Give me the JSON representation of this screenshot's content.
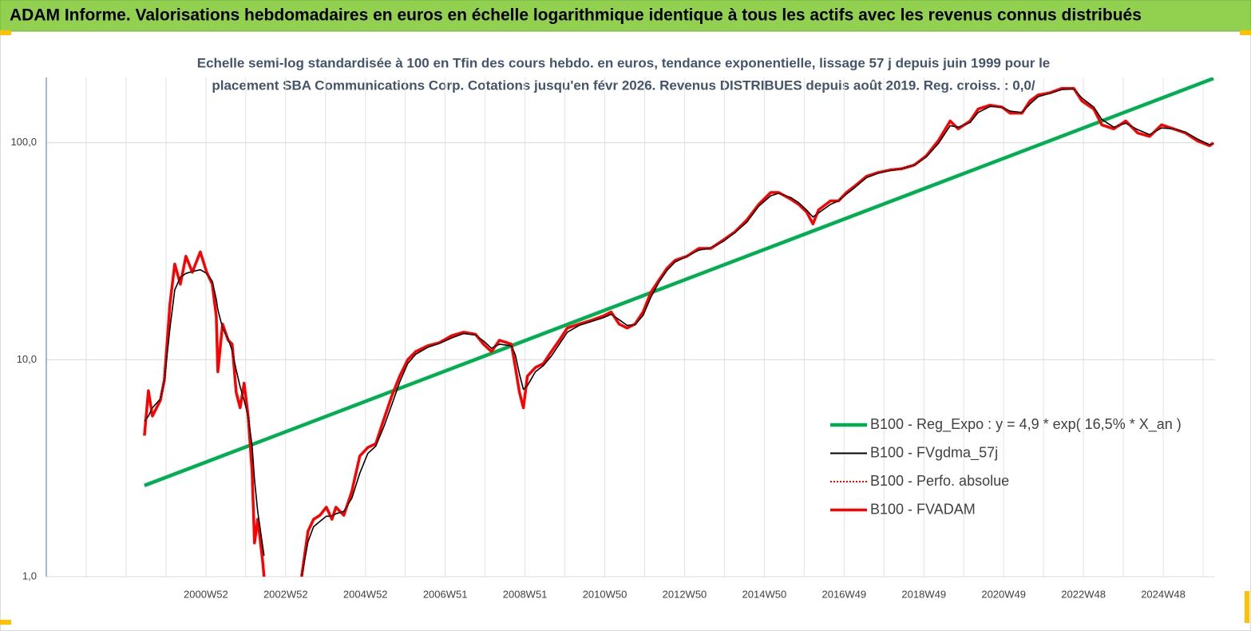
{
  "chart_data": {
    "type": "line",
    "title": "ADAM Informe. Valorisations hebdomadaires en euros en échelle logarithmique identique à tous les actifs avec les revenus connus distribués",
    "subtitle": [
      "Echelle semi-log standardisée à 100 en Tfin des cours hebdo. en euros, tendance exponentielle, lissage 57 j depuis juin 1999 pour le",
      "placement SBA Communications Corp. Cotations jusqu'en févr 2026. Revenus DISTRIBUES depuis août 2019. Reg. croiss. :  0,0/"
    ],
    "yscale": "log",
    "ylim": [
      1,
      200
    ],
    "yticks": [
      {
        "value": 1,
        "label": "1,0"
      },
      {
        "value": 10,
        "label": "10,0"
      },
      {
        "value": 100,
        "label": "100,0"
      }
    ],
    "xlim": [
      1997,
      2026.3
    ],
    "xticks": [
      {
        "value": 2001,
        "label": "2000W52"
      },
      {
        "value": 2003,
        "label": "2002W52"
      },
      {
        "value": 2005,
        "label": "2004W52"
      },
      {
        "value": 2007,
        "label": "2006W51"
      },
      {
        "value": 2009,
        "label": "2008W51"
      },
      {
        "value": 2011,
        "label": "2010W50"
      },
      {
        "value": 2013,
        "label": "2012W50"
      },
      {
        "value": 2015,
        "label": "2014W50"
      },
      {
        "value": 2017,
        "label": "2016W49"
      },
      {
        "value": 2019,
        "label": "2018W49"
      },
      {
        "value": 2021,
        "label": "2020W49"
      },
      {
        "value": 2023,
        "label": "2022W48"
      },
      {
        "value": 2025,
        "label": "2024W48"
      }
    ],
    "xgrid": [
      1998,
      1999,
      2000,
      2001,
      2002,
      2003,
      2004,
      2005,
      2006,
      2007,
      2008,
      2009,
      2010,
      2011,
      2012,
      2013,
      2014,
      2015,
      2016,
      2017,
      2018,
      2019,
      2020,
      2021,
      2022,
      2023,
      2024,
      2025,
      2026
    ],
    "grid": true,
    "legend": "lower right",
    "x": [
      1999.46,
      1999.56,
      1999.66,
      1999.86,
      1999.96,
      2000.1,
      2000.22,
      2000.36,
      2000.5,
      2000.66,
      2000.86,
      2001.02,
      2001.16,
      2001.26,
      2001.3,
      2001.42,
      2001.56,
      2001.66,
      2001.76,
      2001.86,
      2001.96,
      2002.06,
      2002.16,
      2002.22,
      2002.3,
      2002.42,
      2002.46,
      2003.0,
      2003.4,
      2003.56,
      2003.7,
      2003.86,
      2004.02,
      2004.16,
      2004.26,
      2004.46,
      2004.66,
      2004.86,
      2005.06,
      2005.26,
      2005.46,
      2005.66,
      2005.86,
      2006.06,
      2006.26,
      2006.56,
      2006.86,
      2007.16,
      2007.46,
      2007.76,
      2007.96,
      2008.16,
      2008.36,
      2008.66,
      2008.76,
      2008.86,
      2008.96,
      2009.06,
      2009.26,
      2009.46,
      2009.66,
      2009.86,
      2010.06,
      2010.36,
      2010.66,
      2010.96,
      2011.16,
      2011.36,
      2011.56,
      2011.76,
      2011.96,
      2012.16,
      2012.36,
      2012.56,
      2012.76,
      2013.06,
      2013.36,
      2013.66,
      2013.96,
      2014.26,
      2014.56,
      2014.86,
      2015.16,
      2015.36,
      2015.66,
      2015.86,
      2016.06,
      2016.22,
      2016.36,
      2016.66,
      2016.86,
      2017.06,
      2017.26,
      2017.56,
      2017.86,
      2018.16,
      2018.46,
      2018.76,
      2019.06,
      2019.36,
      2019.66,
      2019.86,
      2020.16,
      2020.36,
      2020.66,
      2020.96,
      2021.16,
      2021.46,
      2021.66,
      2021.86,
      2022.16,
      2022.46,
      2022.76,
      2022.96,
      2023.26,
      2023.46,
      2023.76,
      2024.06,
      2024.36,
      2024.66,
      2024.96,
      2025.26,
      2025.56,
      2025.86,
      2026.16,
      2026.26
    ],
    "series": [
      {
        "name": "B100 - Reg_Expo : y = 4,9 * exp( 16,5% *  X_an )",
        "color": "#00b050",
        "width": 4.5,
        "line_style": "solid",
        "x": [
          1999.46,
          2026.26
        ],
        "values": [
          2.63,
          198
        ]
      },
      {
        "name": "B100 - FVgdma_57j",
        "color": "#000000",
        "width": 1.6,
        "line_style": "solid",
        "values": [
          5.2,
          5.5,
          6.0,
          6.6,
          8.0,
          14,
          21,
          24,
          25,
          25.5,
          26,
          25,
          23,
          19,
          17,
          14,
          12.5,
          11,
          9,
          7.5,
          6.5,
          5.5,
          4.0,
          2.8,
          2.0,
          1.4,
          1.25,
          null,
          1.0,
          1.45,
          1.7,
          1.8,
          1.9,
          1.9,
          1.95,
          2.0,
          2.3,
          3.0,
          3.7,
          4.0,
          4.9,
          6.2,
          7.9,
          9.6,
          10.6,
          11.4,
          11.9,
          12.6,
          13.2,
          13.0,
          12.2,
          11.3,
          11.8,
          11.6,
          10.5,
          8.6,
          7.3,
          7.6,
          8.8,
          9.4,
          10.4,
          11.8,
          13.4,
          14.4,
          15.0,
          15.6,
          16.2,
          15.3,
          14.4,
          14.5,
          16.0,
          19.5,
          22.8,
          25.8,
          28.2,
          30,
          32,
          32.8,
          35,
          38.5,
          43,
          51,
          57,
          58.5,
          56,
          53,
          49,
          45.5,
          47.5,
          52,
          54,
          58,
          62,
          69,
          72.5,
          74.5,
          76,
          79,
          86,
          99,
          120,
          118,
          124,
          138,
          147,
          146,
          140,
          138,
          151,
          163,
          169,
          176,
          177,
          161,
          146,
          128,
          118,
          123,
          115,
          109,
          117,
          116,
          112,
          104,
          98,
          99
        ]
      },
      {
        "name": "B100 - Perfo. absolue",
        "color": "#ff0000",
        "width": 1.5,
        "line_style": "dotted",
        "values": [
          4.47,
          7.2,
          5.5,
          6.5,
          8.1,
          18.1,
          27.6,
          22.3,
          30,
          25.3,
          31.4,
          25.3,
          22.3,
          15.9,
          8.8,
          14.6,
          12.3,
          11.8,
          7.1,
          6.0,
          7.8,
          5.5,
          3.06,
          1.43,
          1.84,
          1.2,
          1.0,
          null,
          1.0,
          1.62,
          1.84,
          1.92,
          2.09,
          1.84,
          2.09,
          1.92,
          2.47,
          3.6,
          3.94,
          4.1,
          5.3,
          6.8,
          8.4,
          10,
          10.9,
          11.6,
          12.0,
          12.9,
          13.4,
          13.1,
          11.8,
          10.9,
          12.3,
          11.8,
          9.2,
          7.1,
          6.0,
          8.4,
          9.2,
          9.6,
          10.9,
          12.3,
          14.0,
          14.6,
          15.2,
          15.9,
          16.6,
          14.6,
          14.0,
          14.6,
          16.6,
          20.5,
          23.3,
          26.4,
          28.7,
          30,
          32.6,
          32.6,
          35.5,
          38.8,
          44,
          52,
          59,
          59,
          55,
          52,
          48,
          42.3,
          49,
          54,
          54,
          59,
          63,
          70,
          73,
          75,
          76,
          79,
          87,
          102,
          126,
          116,
          126,
          143,
          149,
          146,
          137,
          137,
          156,
          166,
          170,
          178,
          178,
          156,
          143,
          121,
          116,
          126,
          111,
          107,
          121,
          116,
          111,
          102,
          97,
          100
        ]
      },
      {
        "name": "B100 - FVADAM",
        "color": "#ff0000",
        "width": 3.5,
        "line_style": "solid",
        "values": [
          4.47,
          7.2,
          5.5,
          6.5,
          8.1,
          18.1,
          27.6,
          22.3,
          30,
          25.3,
          31.4,
          25.3,
          22.3,
          15.9,
          8.8,
          14.6,
          12.3,
          11.8,
          7.1,
          6.0,
          7.8,
          5.5,
          3.06,
          1.43,
          1.84,
          1.2,
          1.0,
          null,
          1.0,
          1.62,
          1.84,
          1.92,
          2.09,
          1.84,
          2.09,
          1.92,
          2.47,
          3.6,
          3.94,
          4.1,
          5.3,
          6.8,
          8.4,
          10,
          10.9,
          11.6,
          12.0,
          12.9,
          13.4,
          13.1,
          11.8,
          10.9,
          12.3,
          11.8,
          9.2,
          7.1,
          6.0,
          8.4,
          9.2,
          9.6,
          10.9,
          12.3,
          14.0,
          14.6,
          15.2,
          15.9,
          16.6,
          14.6,
          14.0,
          14.6,
          16.6,
          20.5,
          23.3,
          26.4,
          28.7,
          30,
          32.6,
          32.6,
          35.5,
          38.8,
          44,
          52,
          59,
          59,
          55,
          52,
          48,
          42.3,
          49,
          54,
          54,
          59,
          63,
          70,
          73,
          75,
          76,
          79,
          87,
          102,
          126,
          116,
          126,
          143,
          149,
          146,
          137,
          137,
          156,
          166,
          170,
          178,
          178,
          156,
          143,
          121,
          116,
          126,
          111,
          107,
          121,
          116,
          111,
          102,
          97,
          100
        ]
      }
    ]
  }
}
